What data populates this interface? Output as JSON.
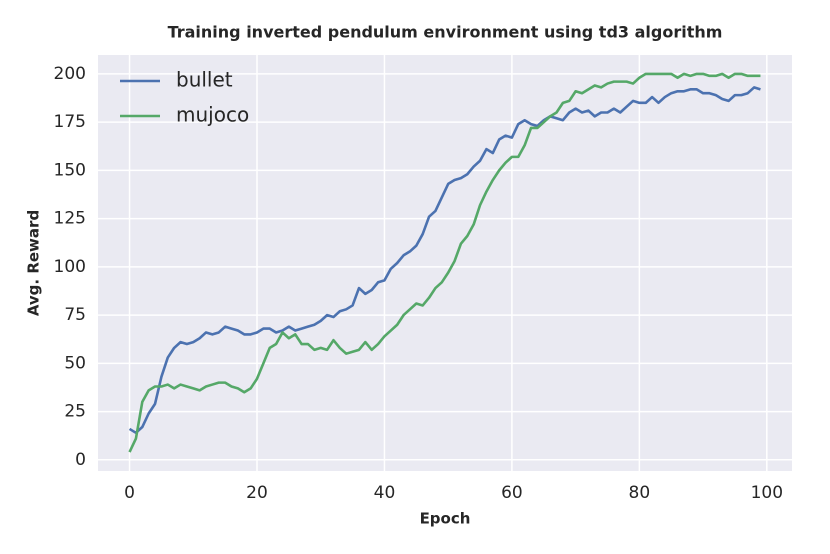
{
  "chart_data": {
    "type": "line",
    "title": "Training inverted pendulum environment using td3 algorithm",
    "x_label": "Epoch",
    "y_label": "Avg. Reward",
    "x": [
      0,
      1,
      2,
      3,
      4,
      5,
      6,
      7,
      8,
      9,
      10,
      11,
      12,
      13,
      14,
      15,
      16,
      17,
      18,
      19,
      20,
      21,
      22,
      23,
      24,
      25,
      26,
      27,
      28,
      29,
      30,
      31,
      32,
      33,
      34,
      35,
      36,
      37,
      38,
      39,
      40,
      41,
      42,
      43,
      44,
      45,
      46,
      47,
      48,
      49,
      50,
      51,
      52,
      53,
      54,
      55,
      56,
      57,
      58,
      59,
      60,
      61,
      62,
      63,
      64,
      65,
      66,
      67,
      68,
      69,
      70,
      71,
      72,
      73,
      74,
      75,
      76,
      77,
      78,
      79,
      80,
      81,
      82,
      83,
      84,
      85,
      86,
      87,
      88,
      89,
      90,
      91,
      92,
      93,
      94,
      95,
      96,
      97,
      98,
      99
    ],
    "series": [
      {
        "name": "bullet",
        "color": "#4c72b0",
        "values": [
          16,
          14,
          17,
          24,
          29,
          43,
          53,
          58,
          61,
          60,
          61,
          63,
          66,
          65,
          66,
          69,
          68,
          67,
          65,
          65,
          66,
          68,
          68,
          66,
          67,
          69,
          67,
          68,
          69,
          70,
          72,
          75,
          74,
          77,
          78,
          80,
          89,
          86,
          88,
          92,
          93,
          99,
          102,
          106,
          108,
          111,
          117,
          126,
          129,
          136,
          143,
          145,
          146,
          148,
          152,
          155,
          161,
          159,
          166,
          168,
          167,
          174,
          176,
          174,
          173,
          176,
          178,
          177,
          176,
          180,
          182,
          180,
          181,
          178,
          180,
          180,
          182,
          180,
          183,
          186,
          185,
          185,
          188,
          185,
          188,
          190,
          191,
          191,
          192,
          192,
          190,
          190,
          189,
          187,
          186,
          189,
          189,
          190,
          193,
          192
        ]
      },
      {
        "name": "mujoco",
        "color": "#55a868",
        "values": [
          4,
          11,
          30,
          36,
          38,
          38,
          39,
          37,
          39,
          38,
          37,
          36,
          38,
          39,
          40,
          40,
          38,
          37,
          35,
          37,
          42,
          50,
          58,
          60,
          66,
          63,
          65,
          60,
          60,
          57,
          58,
          57,
          62,
          58,
          55,
          56,
          57,
          61,
          57,
          60,
          64,
          67,
          70,
          75,
          78,
          81,
          80,
          84,
          89,
          92,
          97,
          103,
          112,
          116,
          122,
          132,
          139,
          145,
          150,
          154,
          157,
          157,
          163,
          172,
          172,
          175,
          178,
          180,
          185,
          186,
          191,
          190,
          192,
          194,
          193,
          195,
          196,
          196,
          196,
          195,
          198,
          200,
          200,
          200,
          200,
          200,
          198,
          200,
          199,
          200,
          200,
          199,
          199,
          200,
          198,
          200,
          200,
          199,
          199,
          199
        ]
      }
    ],
    "xlim": [
      -4.95,
      103.95
    ],
    "ylim": [
      -5.8,
      209.8
    ],
    "xticks": [
      0,
      20,
      40,
      60,
      80,
      100
    ],
    "yticks": [
      0,
      25,
      50,
      75,
      100,
      125,
      150,
      175,
      200
    ],
    "grid": true,
    "legend": "upper left"
  }
}
